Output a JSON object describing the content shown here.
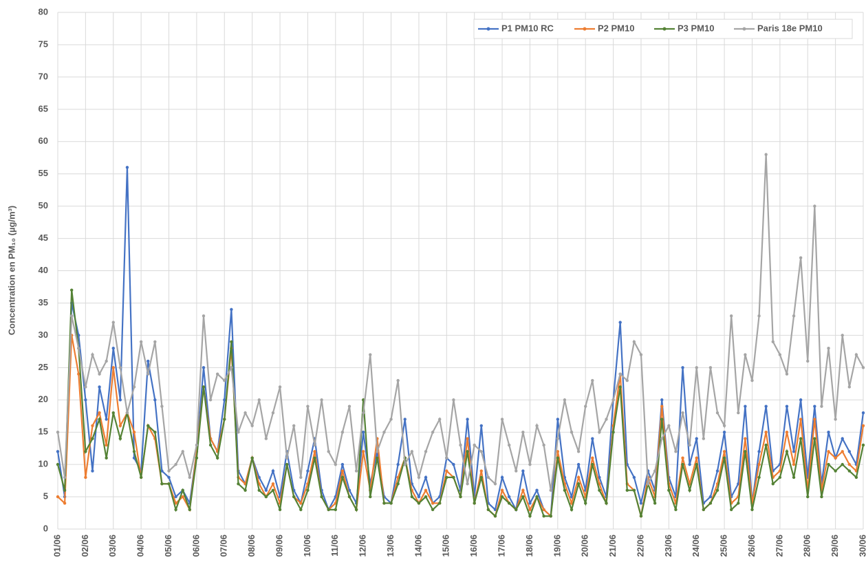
{
  "chart_data": {
    "type": "line",
    "y_label": "Concentration en PM₁₀ (µg/m³)",
    "x": [
      0,
      0.25,
      0.5,
      0.75,
      1,
      1.25,
      1.5,
      1.75,
      2,
      2.25,
      2.5,
      2.75,
      3,
      3.25,
      3.5,
      3.75,
      4,
      4.25,
      4.5,
      4.75,
      5,
      5.25,
      5.5,
      5.75,
      6,
      6.25,
      6.5,
      6.75,
      7,
      7.25,
      7.5,
      7.75,
      8,
      8.25,
      8.5,
      8.75,
      9,
      9.25,
      9.5,
      9.75,
      10,
      10.25,
      10.5,
      10.75,
      11,
      11.25,
      11.5,
      11.75,
      12,
      12.25,
      12.5,
      12.75,
      13,
      13.25,
      13.5,
      13.75,
      14,
      14.25,
      14.5,
      14.75,
      15,
      15.25,
      15.5,
      15.75,
      16,
      16.25,
      16.5,
      16.75,
      17,
      17.25,
      17.5,
      17.75,
      18,
      18.25,
      18.5,
      18.75,
      19,
      19.25,
      19.5,
      19.75,
      20,
      20.25,
      20.5,
      20.75,
      21,
      21.25,
      21.5,
      21.75,
      22,
      22.25,
      22.5,
      22.75,
      23,
      23.25,
      23.5,
      23.75,
      24,
      24.25,
      24.5,
      24.75,
      25,
      25.25,
      25.5,
      25.75,
      26,
      26.25,
      26.5,
      26.75,
      27,
      27.25,
      27.5,
      27.75,
      28,
      28.25,
      28.5,
      28.75,
      29
    ],
    "series": [
      {
        "name": "P1 PM10 RC",
        "color": "#4472c4",
        "values": [
          12,
          5,
          35,
          30,
          20,
          9,
          22,
          17,
          28,
          20,
          56,
          11,
          9,
          26,
          20,
          9,
          8,
          5,
          6,
          4,
          12,
          25,
          14,
          12,
          20,
          34,
          9,
          7,
          11,
          8,
          6,
          9,
          5,
          12,
          6,
          4,
          9,
          14,
          6,
          3,
          5,
          10,
          6,
          4,
          15,
          7,
          12,
          5,
          4,
          10,
          17,
          7,
          5,
          8,
          4,
          5,
          11,
          10,
          6,
          17,
          5,
          16,
          4,
          3,
          8,
          5,
          3,
          9,
          4,
          6,
          3,
          2,
          17,
          8,
          5,
          10,
          6,
          14,
          8,
          5,
          20,
          32,
          10,
          8,
          4,
          9,
          6,
          20,
          8,
          5,
          25,
          10,
          14,
          4,
          5,
          9,
          15,
          5,
          7,
          19,
          4,
          12,
          19,
          9,
          10,
          19,
          12,
          20,
          8,
          19,
          7,
          15,
          11,
          14,
          12,
          10,
          18
        ]
      },
      {
        "name": "P2 PM10",
        "color": "#ed7d31",
        "values": [
          5,
          4,
          30,
          24,
          8,
          16,
          18,
          13,
          25,
          16,
          18,
          15,
          8,
          16,
          14,
          7,
          7,
          4,
          5,
          3,
          12,
          22,
          14,
          12,
          17,
          28,
          8,
          7,
          11,
          7,
          5,
          7,
          4,
          10,
          5,
          4,
          7,
          12,
          5,
          3,
          4,
          9,
          5,
          3,
          12,
          6,
          14,
          4,
          4,
          8,
          11,
          6,
          4,
          6,
          4,
          4,
          9,
          8,
          5,
          14,
          4,
          9,
          3,
          2,
          6,
          4,
          3,
          6,
          3,
          5,
          3,
          2,
          12,
          7,
          4,
          8,
          5,
          11,
          7,
          4,
          16,
          24,
          7,
          6,
          2,
          8,
          5,
          19,
          7,
          4,
          11,
          7,
          11,
          3,
          4,
          7,
          12,
          4,
          5,
          14,
          4,
          10,
          15,
          8,
          9,
          15,
          10,
          17,
          6,
          17,
          6,
          12,
          11,
          12,
          10,
          9,
          16
        ]
      },
      {
        "name": "P3 PM10",
        "color": "#548235",
        "values": [
          10,
          6,
          37,
          28,
          12,
          14,
          17,
          11,
          18,
          14,
          18,
          12,
          8,
          16,
          15,
          7,
          7,
          3,
          6,
          3,
          11,
          22,
          13,
          11,
          17,
          29,
          7,
          6,
          11,
          6,
          5,
          6,
          3,
          10,
          5,
          3,
          6,
          11,
          5,
          3,
          3,
          8,
          5,
          3,
          20,
          5,
          11,
          4,
          4,
          7,
          11,
          5,
          4,
          5,
          3,
          4,
          8,
          8,
          5,
          12,
          4,
          8,
          3,
          2,
          5,
          4,
          3,
          5,
          2,
          5,
          2,
          2,
          11,
          6,
          3,
          7,
          4,
          10,
          6,
          4,
          15,
          22,
          6,
          6,
          2,
          7,
          4,
          17,
          6,
          3,
          10,
          6,
          10,
          3,
          4,
          6,
          11,
          3,
          4,
          12,
          3,
          8,
          13,
          7,
          8,
          12,
          8,
          14,
          5,
          14,
          5,
          10,
          9,
          10,
          9,
          8,
          13
        ]
      },
      {
        "name": "Paris 18e PM10",
        "color": "#a5a5a5",
        "values": [
          15,
          8,
          33,
          28,
          22,
          27,
          24,
          26,
          32,
          25,
          18,
          22,
          29,
          24,
          29,
          19,
          9,
          10,
          12,
          8,
          13,
          33,
          20,
          24,
          23,
          25,
          15,
          18,
          16,
          20,
          14,
          18,
          22,
          11,
          16,
          8,
          19,
          13,
          20,
          12,
          10,
          15,
          19,
          9,
          18,
          27,
          12,
          15,
          17,
          23,
          10,
          12,
          8,
          12,
          15,
          17,
          11,
          20,
          13,
          7,
          13,
          12,
          8,
          7,
          17,
          13,
          9,
          15,
          10,
          16,
          13,
          6,
          14,
          20,
          15,
          12,
          19,
          23,
          15,
          17,
          20,
          24,
          23,
          29,
          27,
          7,
          9,
          14,
          16,
          12,
          18,
          13,
          25,
          14,
          25,
          18,
          16,
          33,
          18,
          27,
          23,
          33,
          58,
          29,
          27,
          24,
          33,
          42,
          26,
          50,
          19,
          28,
          17,
          30,
          22,
          27,
          25
        ]
      }
    ],
    "xlim": [
      0,
      29
    ],
    "xticks": [
      {
        "value": 0,
        "label": "01/06"
      },
      {
        "value": 1,
        "label": "02/06"
      },
      {
        "value": 2,
        "label": "03/06"
      },
      {
        "value": 3,
        "label": "04/06"
      },
      {
        "value": 4,
        "label": "05/06"
      },
      {
        "value": 5,
        "label": "06/06"
      },
      {
        "value": 6,
        "label": "07/06"
      },
      {
        "value": 7,
        "label": "08/06"
      },
      {
        "value": 8,
        "label": "09/06"
      },
      {
        "value": 9,
        "label": "10/06"
      },
      {
        "value": 10,
        "label": "11/06"
      },
      {
        "value": 11,
        "label": "12/06"
      },
      {
        "value": 12,
        "label": "13/06"
      },
      {
        "value": 13,
        "label": "14/06"
      },
      {
        "value": 14,
        "label": "15/06"
      },
      {
        "value": 15,
        "label": "16/06"
      },
      {
        "value": 16,
        "label": "17/06"
      },
      {
        "value": 17,
        "label": "18/06"
      },
      {
        "value": 18,
        "label": "19/06"
      },
      {
        "value": 19,
        "label": "20/06"
      },
      {
        "value": 20,
        "label": "21/06"
      },
      {
        "value": 21,
        "label": "22/06"
      },
      {
        "value": 22,
        "label": "23/06"
      },
      {
        "value": 23,
        "label": "24/06"
      },
      {
        "value": 24,
        "label": "25/06"
      },
      {
        "value": 25,
        "label": "26/06"
      },
      {
        "value": 26,
        "label": "27/06"
      },
      {
        "value": 27,
        "label": "28/06"
      },
      {
        "value": 28,
        "label": "29/06"
      },
      {
        "value": 29,
        "label": "30/06"
      }
    ],
    "ylim": [
      0,
      80
    ],
    "yticks": [
      0,
      5,
      10,
      15,
      20,
      25,
      30,
      35,
      40,
      45,
      50,
      55,
      60,
      65,
      70,
      75,
      80
    ],
    "grid": true,
    "legend": "top-right"
  }
}
